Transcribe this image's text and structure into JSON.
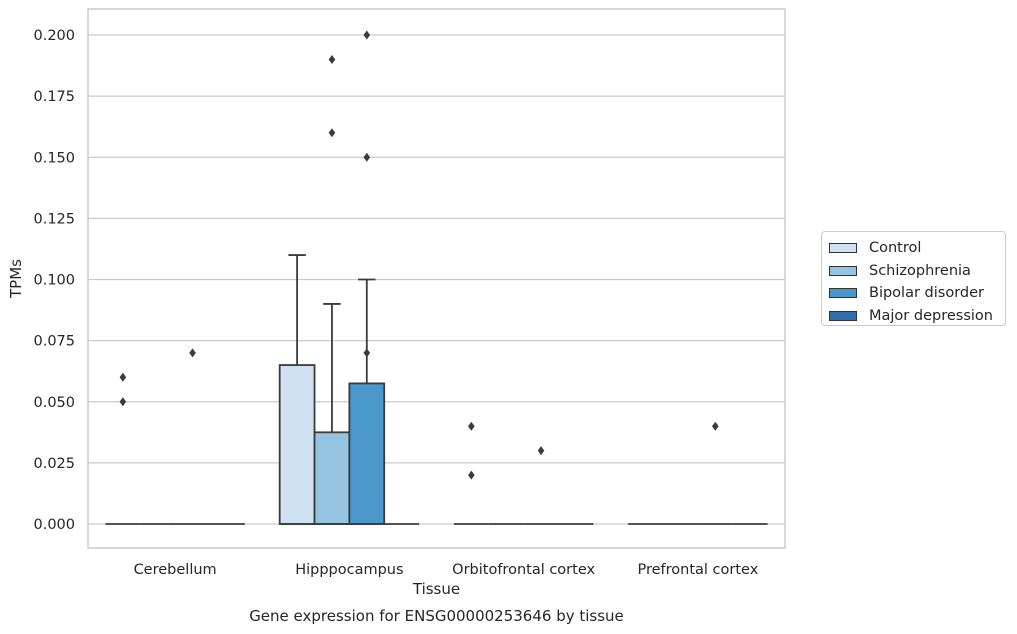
{
  "chart_data": {
    "type": "box",
    "title": "Gene expression for ENSG00000253646 by tissue",
    "xlabel": "Tissue",
    "ylabel": "TPMs",
    "ylim": [
      -0.01,
      0.21
    ],
    "yticks": [
      0.0,
      0.025,
      0.05,
      0.075,
      0.1,
      0.125,
      0.15,
      0.175,
      0.2
    ],
    "ytick_labels": [
      "0.000",
      "0.025",
      "0.050",
      "0.075",
      "0.100",
      "0.125",
      "0.150",
      "0.175",
      "0.200"
    ],
    "grid": true,
    "legend_position": "right",
    "categories": [
      "Cerebellum",
      "Hipppocampus",
      "Orbitofrontal cortex",
      "Prefrontal cortex"
    ],
    "series": [
      {
        "name": "Control",
        "color": "#d0e1f2",
        "boxes": [
          {
            "q1": 0,
            "median": 0,
            "q3": 0,
            "whisker_low": 0,
            "whisker_high": 0,
            "outliers": [
              0.05,
              0.06
            ]
          },
          {
            "q1": 0,
            "median": 0,
            "q3": 0.065,
            "whisker_low": 0,
            "whisker_high": 0.11,
            "outliers": []
          },
          {
            "q1": 0,
            "median": 0,
            "q3": 0,
            "whisker_low": 0,
            "whisker_high": 0,
            "outliers": [
              0.02,
              0.04
            ]
          },
          {
            "q1": 0,
            "median": 0,
            "q3": 0,
            "whisker_low": 0,
            "whisker_high": 0,
            "outliers": []
          }
        ]
      },
      {
        "name": "Schizophrenia",
        "color": "#94c4df",
        "boxes": [
          {
            "q1": 0,
            "median": 0,
            "q3": 0,
            "whisker_low": 0,
            "whisker_high": 0,
            "outliers": []
          },
          {
            "q1": 0,
            "median": 0,
            "q3": 0.0375,
            "whisker_low": 0,
            "whisker_high": 0.09,
            "outliers": [
              0.16,
              0.19
            ]
          },
          {
            "q1": 0,
            "median": 0,
            "q3": 0,
            "whisker_low": 0,
            "whisker_high": 0,
            "outliers": []
          },
          {
            "q1": 0,
            "median": 0,
            "q3": 0,
            "whisker_low": 0,
            "whisker_high": 0,
            "outliers": []
          }
        ]
      },
      {
        "name": "Bipolar disorder",
        "color": "#4a98c9",
        "boxes": [
          {
            "q1": 0,
            "median": 0,
            "q3": 0,
            "whisker_low": 0,
            "whisker_high": 0,
            "outliers": [
              0.07
            ]
          },
          {
            "q1": 0,
            "median": 0,
            "q3": 0.0575,
            "whisker_low": 0,
            "whisker_high": 0.1,
            "outliers": [
              0.07,
              0.15,
              0.2
            ]
          },
          {
            "q1": 0,
            "median": 0,
            "q3": 0,
            "whisker_low": 0,
            "whisker_high": 0,
            "outliers": [
              0.03
            ]
          },
          {
            "q1": 0,
            "median": 0,
            "q3": 0,
            "whisker_low": 0,
            "whisker_high": 0,
            "outliers": [
              0.04
            ]
          }
        ]
      },
      {
        "name": "Major depression",
        "color": "#2e6fad",
        "boxes": [
          {
            "q1": 0,
            "median": 0,
            "q3": 0,
            "whisker_low": 0,
            "whisker_high": 0,
            "outliers": []
          },
          {
            "q1": 0,
            "median": 0,
            "q3": 0,
            "whisker_low": 0,
            "whisker_high": 0,
            "outliers": []
          },
          {
            "q1": 0,
            "median": 0,
            "q3": 0,
            "whisker_low": 0,
            "whisker_high": 0,
            "outliers": []
          },
          {
            "q1": 0,
            "median": 0,
            "q3": 0,
            "whisker_low": 0,
            "whisker_high": 0,
            "outliers": []
          }
        ]
      }
    ]
  }
}
